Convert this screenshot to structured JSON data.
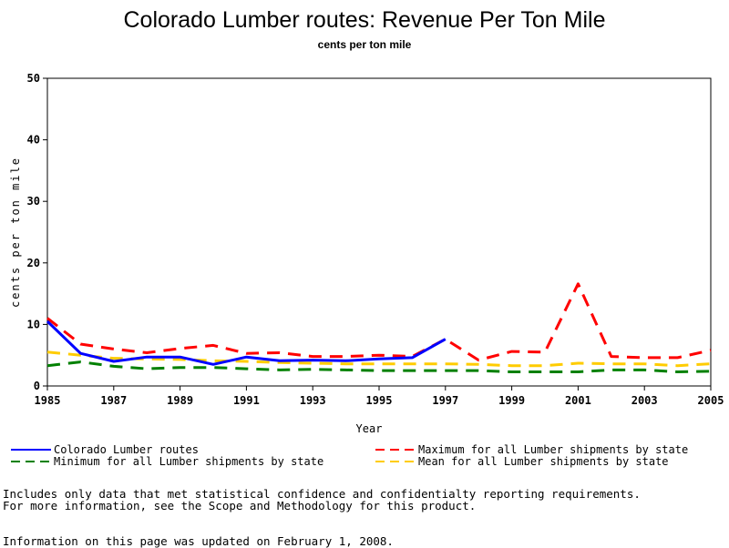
{
  "chart_data": {
    "type": "line",
    "title": "Colorado Lumber routes: Revenue Per Ton Mile",
    "subtitle": "cents per ton mile",
    "xlabel": "Year",
    "ylabel": "cents per ton mile",
    "xlim": [
      1985,
      2005
    ],
    "ylim": [
      0,
      50
    ],
    "x_ticks": [
      1985,
      1987,
      1989,
      1991,
      1993,
      1995,
      1997,
      1999,
      2001,
      2003,
      2005
    ],
    "y_ticks": [
      0,
      10,
      20,
      30,
      40,
      50
    ],
    "legend_placement": "bottom",
    "grid": false,
    "series": [
      {
        "name": "Colorado Lumber routes",
        "color": "#0000ff",
        "style": "solid",
        "points": [
          [
            1985,
            10.5
          ],
          [
            1986,
            5.3
          ],
          [
            1987,
            4.0
          ],
          [
            1988,
            4.7
          ],
          [
            1989,
            4.7
          ],
          [
            1990,
            3.5
          ],
          [
            1991,
            4.7
          ],
          [
            1992,
            4.1
          ],
          [
            1993,
            4.2
          ],
          [
            1994,
            4.1
          ],
          [
            1995,
            4.4
          ],
          [
            1996,
            4.6
          ],
          [
            1997,
            7.6
          ]
        ]
      },
      {
        "name": "Maximum for all Lumber shipments by state",
        "color": "#ff0000",
        "style": "dashed",
        "points": [
          [
            1985,
            11.0
          ],
          [
            1986,
            6.8
          ],
          [
            1987,
            6.0
          ],
          [
            1988,
            5.4
          ],
          [
            1989,
            6.1
          ],
          [
            1990,
            6.6
          ],
          [
            1991,
            5.3
          ],
          [
            1992,
            5.4
          ],
          [
            1993,
            4.8
          ],
          [
            1994,
            4.8
          ],
          [
            1995,
            5.0
          ],
          [
            1996,
            4.8
          ],
          [
            1997,
            7.6
          ],
          [
            1998,
            4.2
          ],
          [
            1999,
            5.6
          ],
          [
            2000,
            5.5
          ],
          [
            2001,
            16.6
          ],
          [
            2002,
            4.8
          ],
          [
            2003,
            4.6
          ],
          [
            2004,
            4.6
          ],
          [
            2005,
            5.8
          ]
        ]
      },
      {
        "name": "Minimum for all Lumber shipments by state",
        "color": "#008000",
        "style": "dashed",
        "points": [
          [
            1985,
            3.3
          ],
          [
            1986,
            3.9
          ],
          [
            1987,
            3.2
          ],
          [
            1988,
            2.8
          ],
          [
            1989,
            3.0
          ],
          [
            1990,
            3.0
          ],
          [
            1991,
            2.8
          ],
          [
            1992,
            2.6
          ],
          [
            1993,
            2.7
          ],
          [
            1994,
            2.6
          ],
          [
            1995,
            2.5
          ],
          [
            1996,
            2.5
          ],
          [
            1997,
            2.5
          ],
          [
            1998,
            2.5
          ],
          [
            1999,
            2.3
          ],
          [
            2000,
            2.3
          ],
          [
            2001,
            2.3
          ],
          [
            2002,
            2.6
          ],
          [
            2003,
            2.6
          ],
          [
            2004,
            2.3
          ],
          [
            2005,
            2.4
          ]
        ]
      },
      {
        "name": "Mean for all Lumber shipments by state",
        "color": "#ffcc00",
        "style": "dashed",
        "points": [
          [
            1985,
            5.5
          ],
          [
            1986,
            5.0
          ],
          [
            1987,
            4.5
          ],
          [
            1988,
            4.4
          ],
          [
            1989,
            4.3
          ],
          [
            1990,
            4.1
          ],
          [
            1991,
            4.0
          ],
          [
            1992,
            3.8
          ],
          [
            1993,
            3.7
          ],
          [
            1994,
            3.6
          ],
          [
            1995,
            3.6
          ],
          [
            1996,
            3.6
          ],
          [
            1997,
            3.6
          ],
          [
            1998,
            3.5
          ],
          [
            1999,
            3.3
          ],
          [
            2000,
            3.3
          ],
          [
            2001,
            3.7
          ],
          [
            2002,
            3.6
          ],
          [
            2003,
            3.6
          ],
          [
            2004,
            3.3
          ],
          [
            2005,
            3.6
          ]
        ]
      }
    ]
  },
  "notes": {
    "line1": "Includes only data that met statistical confidence and confidentialty reporting requirements.",
    "line2": "For more information, see the Scope and Methodology for this product.",
    "updated": "Information on this page was updated on February 1, 2008."
  }
}
